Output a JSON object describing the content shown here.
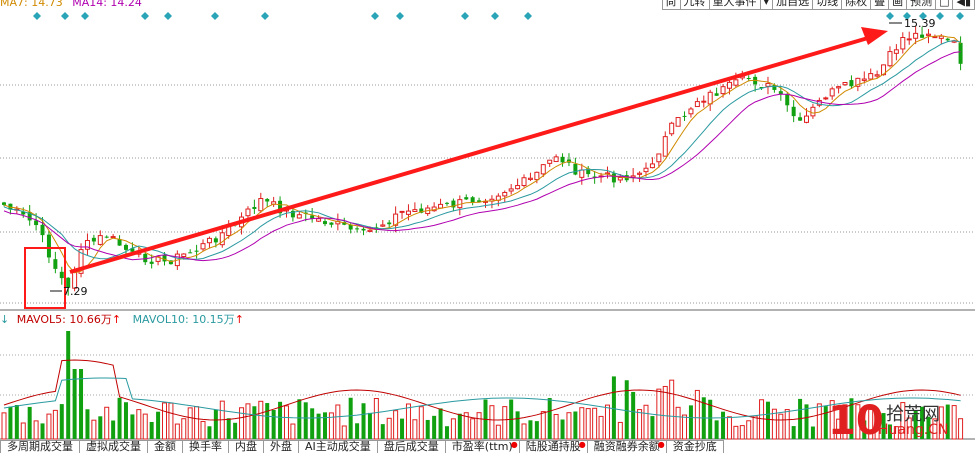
{
  "ma_legend": {
    "ma7": "MA7: 14.73",
    "ma14": "MA14: 14.24",
    "ma7_color": "#d08a00",
    "ma14_color": "#b000b0"
  },
  "top_tabs": [
    "尚",
    "九转",
    "重大事件",
    "▾",
    "加自选",
    "切线",
    "除权",
    "叠",
    "画",
    "预测",
    "□",
    "◀▮"
  ],
  "price_labels": {
    "low": "7.29",
    "high": "15.39"
  },
  "vol_legend": {
    "arrow": "↓",
    "mavol5": "MAVOL5: 10.66万",
    "mavol10": "MAVOL10: 10.15万",
    "up_arrow": "↑"
  },
  "bottom_tabs": [
    {
      "label": "多周期成交量",
      "dot": false
    },
    {
      "label": "虚拟成交量",
      "dot": false
    },
    {
      "label": "金额",
      "dot": false
    },
    {
      "label": "换手率",
      "dot": false
    },
    {
      "label": "内盘",
      "dot": false
    },
    {
      "label": "外盘",
      "dot": false
    },
    {
      "label": "AI主动成交量",
      "dot": false
    },
    {
      "label": "盘后成交量",
      "dot": false
    },
    {
      "label": "市盈率(ttm)",
      "dot": true
    },
    {
      "label": "陆股通持股",
      "dot": true
    },
    {
      "label": "融资融券余额",
      "dot": true
    },
    {
      "label": "资金抄底",
      "dot": false
    }
  ],
  "watermark": {
    "number": "10",
    "cn": "拾荒网",
    "url": "Huang.CN"
  },
  "colors": {
    "up": "#e02020",
    "down": "#10a010",
    "ma_fast": "#d08a00",
    "ma_slow": "#b000b0",
    "ma_teal": "#2a9aa0",
    "grid": "#888888",
    "diamond": "#2aa5b8",
    "arrow": "#ff1a1a"
  },
  "chart_data": {
    "type": "candlestick",
    "annotation": "trend arrow from 7.29 low to 15.39 high",
    "low_price": 7.29,
    "high_price": 15.39
  }
}
